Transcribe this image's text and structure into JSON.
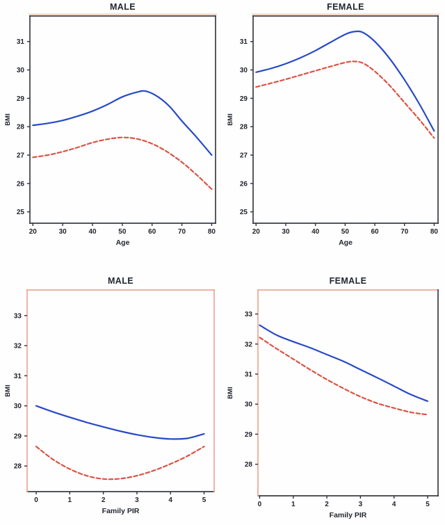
{
  "figure": {
    "background": "#fefefe",
    "description_visible_text_only": "2x2 grid of smoothed line plots of BMI, blue solid and red dashed curves"
  },
  "colors": {
    "blue_line": "#2749c8",
    "red_line": "#dc5244",
    "tick": "#2e3138",
    "dark_frame": "#3a3d44",
    "salmon_frame": "#eda796",
    "halo": "#f3c2b0"
  },
  "chart_data": [
    {
      "type": "line",
      "title": "MALE",
      "xlabel": "Age",
      "ylabel": "BMI",
      "xlim": [
        19,
        81.3
      ],
      "ylim": [
        24.6,
        31.9
      ],
      "xticks": [
        20,
        30,
        40,
        50,
        60,
        70,
        80
      ],
      "yticks": [
        25,
        26,
        27,
        28,
        29,
        30,
        31
      ],
      "grid": false,
      "legend": "none",
      "halo_top": "#f3c2b0",
      "frame": {
        "top": "#3a3d44",
        "bottom": "#3a3d44",
        "left": "#3a3d44",
        "right": "#3a3d44"
      },
      "series": [
        {
          "name": "blue-solid",
          "style": "solid",
          "color_key": "blue_line",
          "x": [
            20,
            25,
            30,
            35,
            40,
            45,
            50,
            55,
            58,
            62,
            66,
            70,
            75,
            80
          ],
          "y": [
            28.05,
            28.12,
            28.22,
            28.37,
            28.55,
            28.78,
            29.05,
            29.22,
            29.25,
            29.05,
            28.7,
            28.2,
            27.62,
            27.0
          ]
        },
        {
          "name": "red-dashed",
          "style": "dashed",
          "color_key": "red_line",
          "x": [
            20,
            25,
            30,
            35,
            40,
            45,
            50,
            55,
            60,
            65,
            70,
            75,
            80
          ],
          "y": [
            26.92,
            27.0,
            27.12,
            27.27,
            27.44,
            27.56,
            27.62,
            27.57,
            27.4,
            27.12,
            26.75,
            26.3,
            25.8
          ]
        }
      ]
    },
    {
      "type": "line",
      "title": "FEMALE",
      "xlabel": "Age",
      "ylabel": "BMI",
      "xlim": [
        19,
        81.3
      ],
      "ylim": [
        24.6,
        31.9
      ],
      "xticks": [
        20,
        30,
        40,
        50,
        60,
        70,
        80
      ],
      "yticks": [
        25,
        26,
        27,
        28,
        29,
        30,
        31
      ],
      "grid": false,
      "legend": "none",
      "halo_top": "#f3c2b0",
      "frame": {
        "top": "#3a3d44",
        "bottom": "#3a3d44",
        "left": "#3a3d44",
        "right": "#3a3d44"
      },
      "series": [
        {
          "name": "blue-solid",
          "style": "solid",
          "color_key": "blue_line",
          "x": [
            20,
            25,
            30,
            35,
            40,
            45,
            50,
            53,
            56,
            60,
            65,
            70,
            75,
            80
          ],
          "y": [
            29.92,
            30.05,
            30.22,
            30.43,
            30.68,
            30.97,
            31.25,
            31.35,
            31.32,
            31.0,
            30.4,
            29.65,
            28.8,
            27.85
          ]
        },
        {
          "name": "red-dashed",
          "style": "dashed",
          "color_key": "red_line",
          "x": [
            20,
            25,
            30,
            35,
            40,
            45,
            50,
            53,
            56,
            60,
            65,
            70,
            75,
            80
          ],
          "y": [
            29.4,
            29.53,
            29.67,
            29.82,
            29.97,
            30.12,
            30.26,
            30.3,
            30.24,
            29.95,
            29.45,
            28.85,
            28.25,
            27.6
          ]
        }
      ]
    },
    {
      "type": "line",
      "title": "MALE",
      "xlabel": "Family PIR",
      "ylabel": "BMI",
      "xlim": [
        -0.27,
        5.3
      ],
      "ylim": [
        27.15,
        33.85
      ],
      "xticks": [
        0,
        1,
        2,
        3,
        4,
        5
      ],
      "yticks": [
        28,
        29,
        30,
        31,
        32,
        33
      ],
      "grid": false,
      "legend": "none",
      "halo_top": null,
      "frame": {
        "top": "#eda796",
        "bottom": "#3a3d44",
        "left": "#eda796",
        "right": "#eda796"
      },
      "series": [
        {
          "name": "blue-solid",
          "style": "solid",
          "color_key": "blue_line",
          "x": [
            0,
            0.5,
            1,
            1.5,
            2,
            2.5,
            3,
            3.5,
            4,
            4.5,
            5
          ],
          "y": [
            30.0,
            29.8,
            29.62,
            29.45,
            29.3,
            29.16,
            29.04,
            28.95,
            28.9,
            28.92,
            29.07
          ]
        },
        {
          "name": "red-dashed",
          "style": "dashed",
          "color_key": "red_line",
          "x": [
            0,
            0.5,
            1,
            1.5,
            2,
            2.5,
            3,
            3.5,
            4,
            4.5,
            5
          ],
          "y": [
            28.65,
            28.22,
            27.9,
            27.68,
            27.57,
            27.58,
            27.68,
            27.85,
            28.07,
            28.33,
            28.65
          ]
        }
      ]
    },
    {
      "type": "line",
      "title": "FEMALE",
      "xlabel": "Family PIR",
      "ylabel": "BMI",
      "xlim": [
        -0.05,
        5.31
      ],
      "ylim": [
        26.95,
        33.8
      ],
      "xticks": [
        0,
        1,
        2,
        3,
        4,
        5
      ],
      "yticks": [
        28,
        29,
        30,
        31,
        32,
        33
      ],
      "grid": false,
      "legend": "none",
      "halo_top": null,
      "frame": {
        "top": "#eda796",
        "bottom": "#3a3d44",
        "left": "#eda796",
        "right": "#3a3d44"
      },
      "series": [
        {
          "name": "blue-solid",
          "style": "solid",
          "color_key": "blue_line",
          "x": [
            0,
            0.5,
            1,
            1.5,
            2,
            2.5,
            3,
            3.5,
            4,
            4.5,
            5
          ],
          "y": [
            32.63,
            32.3,
            32.08,
            31.88,
            31.65,
            31.42,
            31.15,
            30.88,
            30.6,
            30.32,
            30.1
          ]
        },
        {
          "name": "red-dashed",
          "style": "dashed",
          "color_key": "red_line",
          "x": [
            0,
            0.5,
            1,
            1.5,
            2,
            2.5,
            3,
            3.5,
            4,
            4.5,
            5
          ],
          "y": [
            32.22,
            31.85,
            31.5,
            31.15,
            30.82,
            30.52,
            30.25,
            30.03,
            29.87,
            29.73,
            29.65
          ]
        }
      ]
    }
  ]
}
